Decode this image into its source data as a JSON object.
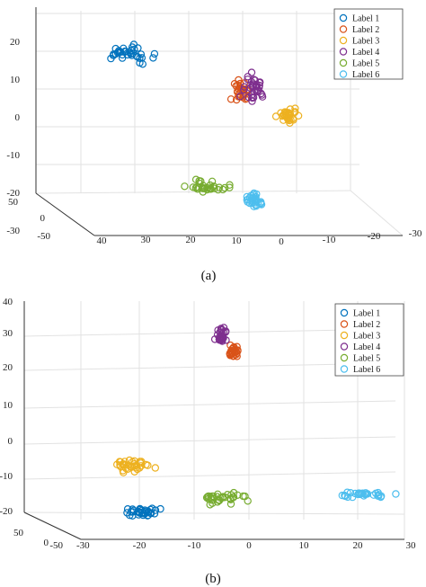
{
  "chart_data": [
    {
      "type": "scatter",
      "caption": "(a)",
      "z_ticks": [
        "20",
        "10",
        "0",
        "-10",
        "-20",
        "-30"
      ],
      "y_ticks": [
        "50",
        "0",
        "-50"
      ],
      "x_ticks": [
        "40",
        "30",
        "20",
        "10",
        "0",
        "-10",
        "-20",
        "-30"
      ],
      "legend_position": "top-right",
      "grid": true,
      "series": [
        {
          "name": "Label 1",
          "color": "#0072BD",
          "center": [
            32,
            -40,
            17
          ],
          "spread": [
            5,
            12,
            1.6
          ],
          "count": 34
        },
        {
          "name": "Label 2",
          "color": "#D95319",
          "center": [
            -1,
            25,
            0
          ],
          "spread": [
            2,
            8,
            2.2
          ],
          "count": 30
        },
        {
          "name": "Label 3",
          "color": "#EDB120",
          "center": [
            -12,
            30,
            -7
          ],
          "spread": [
            2,
            7,
            1.4
          ],
          "count": 30
        },
        {
          "name": "Label 4",
          "color": "#7E2F8E",
          "center": [
            -4,
            30,
            0
          ],
          "spread": [
            2,
            6,
            3.5
          ],
          "count": 34
        },
        {
          "name": "Label 5",
          "color": "#77AC30",
          "center": [
            12,
            -15,
            -21
          ],
          "spread": [
            4,
            8,
            1.4
          ],
          "count": 32
        },
        {
          "name": "Label 6",
          "color": "#4DBEEE",
          "center": [
            0,
            -3,
            -26
          ],
          "spread": [
            2,
            5,
            1.4
          ],
          "count": 30
        }
      ]
    },
    {
      "type": "scatter",
      "caption": "(b)",
      "z_ticks": [
        "40",
        "30",
        "20",
        "10",
        "0",
        "-10",
        "-20"
      ],
      "y_ticks": [
        "50",
        "0",
        "-50"
      ],
      "x_ticks": [
        "-30",
        "-20",
        "-10",
        "0",
        "10",
        "20",
        "30"
      ],
      "legend_position": "top-right",
      "grid": true,
      "series": [
        {
          "name": "Label 1",
          "color": "#0072BD",
          "center": [
            -20,
            -20
          ],
          "spread": [
            3,
            1.2
          ],
          "count": 34
        },
        {
          "name": "Label 2",
          "color": "#D95319",
          "center": [
            -3,
            25
          ],
          "spread": [
            1,
            2
          ],
          "count": 28
        },
        {
          "name": "Label 3",
          "color": "#EDB120",
          "center": [
            -21,
            -7
          ],
          "spread": [
            3,
            1.8
          ],
          "count": 34
        },
        {
          "name": "Label 4",
          "color": "#7E2F8E",
          "center": [
            -5,
            30
          ],
          "spread": [
            1,
            2
          ],
          "count": 28
        },
        {
          "name": "Label 5",
          "color": "#77AC30",
          "center": [
            -5,
            -16
          ],
          "spread": [
            4,
            1.5
          ],
          "count": 32
        },
        {
          "name": "Label 6",
          "color": "#4DBEEE",
          "center": [
            21,
            -15
          ],
          "spread": [
            5,
            0.8
          ],
          "count": 30
        }
      ]
    }
  ]
}
